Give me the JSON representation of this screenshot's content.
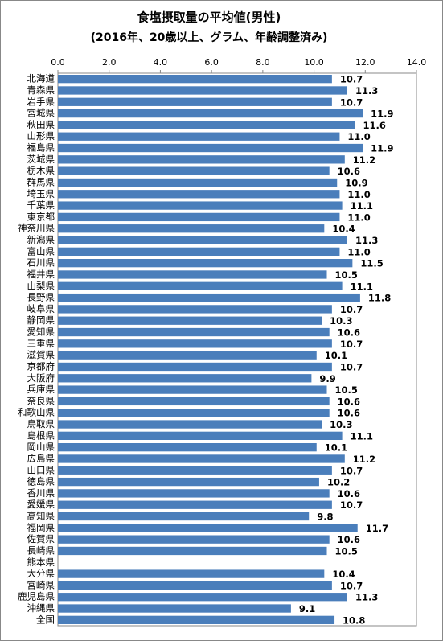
{
  "chart_data": {
    "type": "barh",
    "title": "食塩摂取量の平均値(男性)",
    "subtitle": "(2016年、20歳以上、グラム、年齢調整済み)",
    "categories": [
      "北海道",
      "青森県",
      "岩手県",
      "宮城県",
      "秋田県",
      "山形県",
      "福島県",
      "茨城県",
      "栃木県",
      "群馬県",
      "埼玉県",
      "千葉県",
      "東京都",
      "神奈川県",
      "新潟県",
      "富山県",
      "石川県",
      "福井県",
      "山梨県",
      "長野県",
      "岐阜県",
      "静岡県",
      "愛知県",
      "三重県",
      "滋賀県",
      "京都府",
      "大阪府",
      "兵庫県",
      "奈良県",
      "和歌山県",
      "鳥取県",
      "島根県",
      "岡山県",
      "広島県",
      "山口県",
      "徳島県",
      "香川県",
      "愛媛県",
      "高知県",
      "福岡県",
      "佐賀県",
      "長崎県",
      "熊本県",
      "大分県",
      "宮崎県",
      "鹿児島県",
      "沖縄県",
      "全国"
    ],
    "values": [
      10.7,
      11.3,
      10.7,
      11.9,
      11.6,
      11.0,
      11.9,
      11.2,
      10.6,
      10.9,
      11.0,
      11.1,
      11.0,
      10.4,
      11.3,
      11.0,
      11.5,
      10.5,
      11.1,
      11.8,
      10.7,
      10.3,
      10.6,
      10.7,
      10.1,
      10.7,
      9.9,
      10.5,
      10.6,
      10.6,
      10.3,
      11.1,
      10.1,
      11.2,
      10.7,
      10.2,
      10.6,
      10.7,
      9.8,
      11.7,
      10.6,
      10.5,
      null,
      10.4,
      10.7,
      11.3,
      9.1,
      10.8
    ],
    "value_labels": [
      "10.7",
      "11.3",
      "10.7",
      "11.9",
      "11.6",
      "11.0",
      "11.9",
      "11.2",
      "10.6",
      "10.9",
      "11.0",
      "11.1",
      "11.0",
      "10.4",
      "11.3",
      "11.0",
      "11.5",
      "10.5",
      "11.1",
      "11.8",
      "10.7",
      "10.3",
      "10.6",
      "10.7",
      "10.1",
      "10.7",
      "9.9",
      "10.5",
      "10.6",
      "10.6",
      "10.3",
      "11.1",
      "10.1",
      "11.2",
      "10.7",
      "10.2",
      "10.6",
      "10.7",
      "9.8",
      "11.7",
      "10.6",
      "10.5",
      null,
      "10.4",
      "10.7",
      "11.3",
      "9.1",
      "10.8"
    ],
    "color": "#4a7ebb",
    "xlim": [
      0,
      14
    ],
    "xticks": [
      {
        "value": 0,
        "label": "0.0"
      },
      {
        "value": 2,
        "label": "2.0"
      },
      {
        "value": 4,
        "label": "4.0"
      },
      {
        "value": 6,
        "label": "6.0"
      },
      {
        "value": 8,
        "label": "8.0"
      },
      {
        "value": 10,
        "label": "10.0"
      },
      {
        "value": 12,
        "label": "12.0"
      },
      {
        "value": 14,
        "label": "14.0"
      }
    ],
    "grid": false
  }
}
